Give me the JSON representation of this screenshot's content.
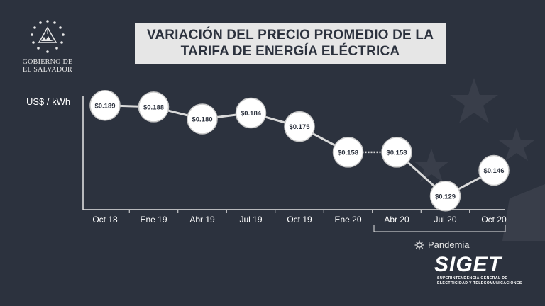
{
  "logo": {
    "line1": "GOBIERNO DE",
    "line2": "EL SALVADOR"
  },
  "title": {
    "line1": "VARIACIÓN DEL PRECIO PROMEDIO DE LA",
    "line2": "TARIFA DE ENERGÍA ELÉCTRICA"
  },
  "chart_data": {
    "type": "line",
    "ylabel": "US$ / kWh",
    "categories": [
      "Oct 18",
      "Ene 19",
      "Abr 19",
      "Jul 19",
      "Oct 19",
      "Ene 20",
      "Abr 20",
      "Jul 20",
      "Oct 20"
    ],
    "values": [
      0.189,
      0.188,
      0.18,
      0.184,
      0.175,
      0.158,
      0.158,
      0.129,
      0.146
    ],
    "data_labels": [
      "$0.189",
      "$0.188",
      "$0.180",
      "$0.184",
      "$0.175",
      "$0.158",
      "$0.158",
      "$0.129",
      "$0.146"
    ],
    "ylim": [
      0.12,
      0.195
    ],
    "grid": false,
    "dotted_segment_between": [
      "Ene 20",
      "Abr 20"
    ],
    "annotation": "Pandemia",
    "annotation_range": [
      "Abr 20",
      "Oct 20"
    ],
    "colors": {
      "line": "#d9d9d9",
      "marker_fill": "#ffffff",
      "label_text": "#2c323e",
      "axis": "#e6e6e6"
    }
  },
  "icons": {
    "pandemia": "virus-icon",
    "logo": "coat-of-arms-icon"
  },
  "brand": {
    "name": "SIGET",
    "sub1": "SUPERINTENDENCIA GENERAL DE",
    "sub2": "ELECTRICIDAD Y TELECOMUNICACIONES"
  }
}
